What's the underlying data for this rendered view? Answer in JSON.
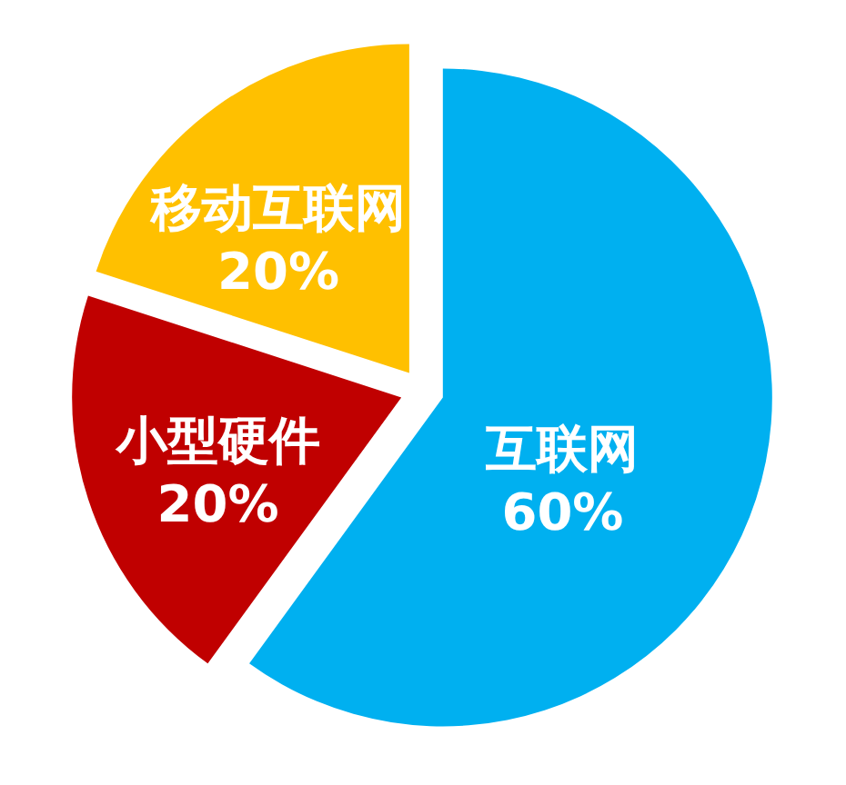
{
  "chart_data": {
    "type": "pie",
    "categories": [
      "互联网",
      "小型硬件",
      "移动互联网"
    ],
    "values": [
      60,
      20,
      20
    ],
    "colors": [
      "#00b0f0",
      "#c00000",
      "#ffc000"
    ],
    "value_labels": [
      "60%",
      "20%",
      "20%"
    ],
    "legend": false
  }
}
